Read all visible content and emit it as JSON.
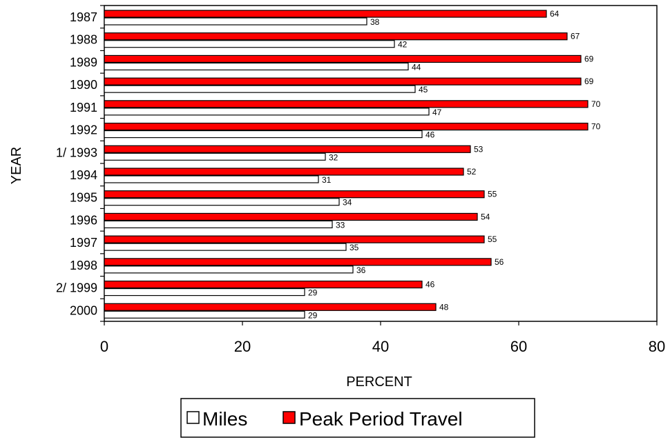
{
  "chart_data": {
    "type": "bar",
    "orientation": "horizontal",
    "categories": [
      "1987",
      "1988",
      "1989",
      "1990",
      "1991",
      "1992",
      "1/ 1993",
      "1994",
      "1995",
      "1996",
      "1997",
      "1998",
      "2/ 1999",
      "2000"
    ],
    "series": [
      {
        "name": "Peak Period Travel",
        "color": "#ff0000",
        "values": [
          64,
          67,
          69,
          69,
          70,
          70,
          53,
          52,
          55,
          54,
          55,
          56,
          46,
          48
        ]
      },
      {
        "name": "Miles",
        "color": "#ffffff",
        "values": [
          38,
          42,
          44,
          45,
          47,
          46,
          32,
          31,
          34,
          33,
          35,
          36,
          29,
          29
        ]
      }
    ],
    "xlabel": "PERCENT",
    "ylabel": "YEAR",
    "xlim": [
      0,
      80
    ],
    "xticks": [
      0,
      20,
      40,
      60,
      80
    ],
    "legend": {
      "position": "bottom",
      "order": [
        "Miles",
        "Peak Period Travel"
      ]
    },
    "grid": false
  }
}
